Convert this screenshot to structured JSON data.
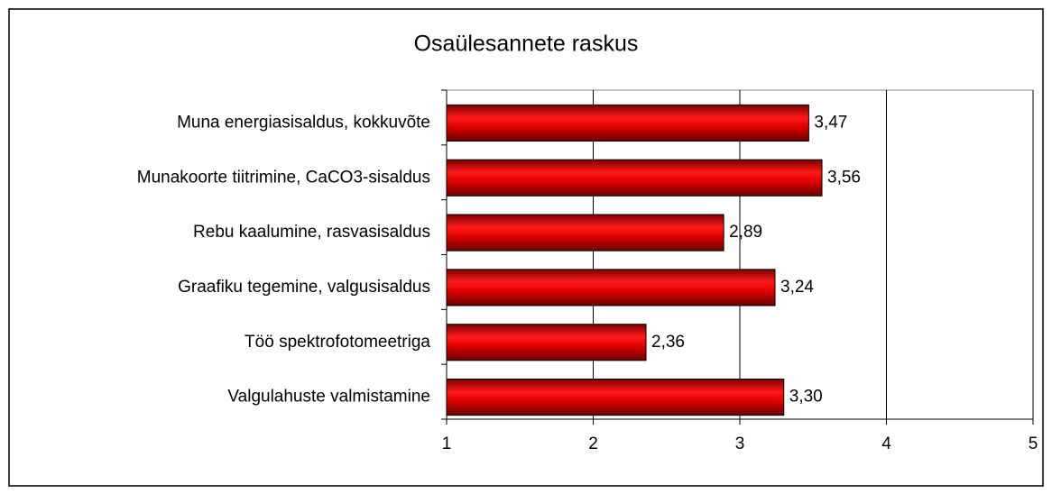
{
  "chart_data": {
    "type": "barh",
    "title": "Osaülesannete raskus",
    "categories": [
      "Muna energiasisaldus, kokkuvõte",
      "Munakoorte tiitrimine, CaCO3-sisaldus",
      "Rebu kaalumine, rasvasisaldus",
      "Graafiku tegemine, valgusisaldus",
      "Töö spektrofotomeetriga",
      "Valgulahuste valmistamine"
    ],
    "values": [
      3.47,
      3.56,
      2.89,
      3.24,
      2.36,
      3.3
    ],
    "value_labels": [
      "3,47",
      "3,56",
      "2,89",
      "3,24",
      "2,36",
      "3,30"
    ],
    "color": "#e00000",
    "xlim": [
      1,
      5
    ],
    "xticks": [
      1,
      2,
      3,
      4,
      5
    ],
    "grid": true
  }
}
